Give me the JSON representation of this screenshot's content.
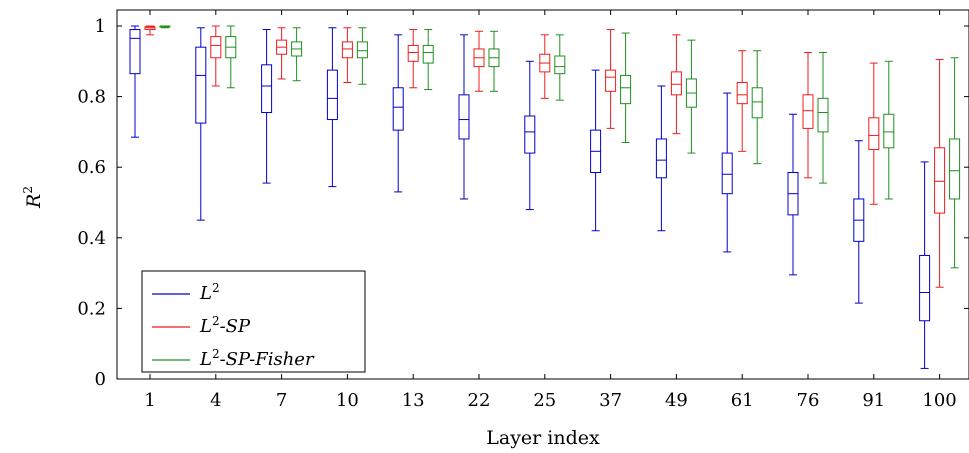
{
  "chart_data": {
    "type": "box",
    "xlabel": "Layer index",
    "ylabel": "R",
    "ylabel_sup": "2",
    "ylim": [
      0,
      1.0
    ],
    "yticks": [
      "0",
      "0.2",
      "0.4",
      "0.6",
      "0.8",
      "1"
    ],
    "categories": [
      "1",
      "4",
      "7",
      "10",
      "13",
      "22",
      "25",
      "37",
      "49",
      "61",
      "76",
      "91",
      "100"
    ],
    "legend_position": "lower-left",
    "series": [
      {
        "name": "L2",
        "legend_base": "L",
        "legend_sup": "2",
        "legend_suffix": "",
        "color": "#0000cc",
        "boxes": [
          {
            "min": 0.685,
            "q1": 0.865,
            "median": 0.965,
            "q3": 0.99,
            "max": 1.0
          },
          {
            "min": 0.45,
            "q1": 0.725,
            "median": 0.86,
            "q3": 0.94,
            "max": 0.995
          },
          {
            "min": 0.555,
            "q1": 0.755,
            "median": 0.83,
            "q3": 0.89,
            "max": 0.99
          },
          {
            "min": 0.545,
            "q1": 0.735,
            "median": 0.795,
            "q3": 0.875,
            "max": 0.995
          },
          {
            "min": 0.53,
            "q1": 0.705,
            "median": 0.77,
            "q3": 0.825,
            "max": 0.975
          },
          {
            "min": 0.51,
            "q1": 0.68,
            "median": 0.735,
            "q3": 0.805,
            "max": 0.975
          },
          {
            "min": 0.48,
            "q1": 0.64,
            "median": 0.7,
            "q3": 0.745,
            "max": 0.9
          },
          {
            "min": 0.42,
            "q1": 0.585,
            "median": 0.645,
            "q3": 0.705,
            "max": 0.875
          },
          {
            "min": 0.42,
            "q1": 0.57,
            "median": 0.62,
            "q3": 0.68,
            "max": 0.83
          },
          {
            "min": 0.36,
            "q1": 0.525,
            "median": 0.58,
            "q3": 0.64,
            "max": 0.81
          },
          {
            "min": 0.295,
            "q1": 0.465,
            "median": 0.525,
            "q3": 0.585,
            "max": 0.75
          },
          {
            "min": 0.215,
            "q1": 0.39,
            "median": 0.45,
            "q3": 0.51,
            "max": 0.675
          },
          {
            "min": 0.03,
            "q1": 0.165,
            "median": 0.245,
            "q3": 0.35,
            "max": 0.615
          }
        ]
      },
      {
        "name": "L2-SP",
        "legend_base": "L",
        "legend_sup": "2",
        "legend_suffix": "-SP",
        "color": "#ee1c1c",
        "boxes": [
          {
            "min": 0.975,
            "q1": 0.99,
            "median": 0.995,
            "q3": 0.998,
            "max": 1.0
          },
          {
            "min": 0.83,
            "q1": 0.91,
            "median": 0.945,
            "q3": 0.97,
            "max": 1.0
          },
          {
            "min": 0.85,
            "q1": 0.92,
            "median": 0.94,
            "q3": 0.96,
            "max": 0.995
          },
          {
            "min": 0.84,
            "q1": 0.91,
            "median": 0.935,
            "q3": 0.955,
            "max": 0.995
          },
          {
            "min": 0.825,
            "q1": 0.9,
            "median": 0.925,
            "q3": 0.945,
            "max": 0.99
          },
          {
            "min": 0.815,
            "q1": 0.885,
            "median": 0.91,
            "q3": 0.935,
            "max": 0.985
          },
          {
            "min": 0.795,
            "q1": 0.87,
            "median": 0.895,
            "q3": 0.92,
            "max": 0.975
          },
          {
            "min": 0.71,
            "q1": 0.815,
            "median": 0.855,
            "q3": 0.875,
            "max": 0.99
          },
          {
            "min": 0.695,
            "q1": 0.805,
            "median": 0.835,
            "q3": 0.87,
            "max": 0.975
          },
          {
            "min": 0.645,
            "q1": 0.78,
            "median": 0.805,
            "q3": 0.84,
            "max": 0.93
          },
          {
            "min": 0.57,
            "q1": 0.71,
            "median": 0.76,
            "q3": 0.805,
            "max": 0.925
          },
          {
            "min": 0.495,
            "q1": 0.65,
            "median": 0.69,
            "q3": 0.74,
            "max": 0.895
          },
          {
            "min": 0.26,
            "q1": 0.47,
            "median": 0.56,
            "q3": 0.655,
            "max": 0.905
          }
        ]
      },
      {
        "name": "L2-SP-Fisher",
        "legend_base": "L",
        "legend_sup": "2",
        "legend_suffix": "-SP-Fisher",
        "color": "#1f8f1f",
        "boxes": [
          {
            "min": 0.995,
            "q1": 0.998,
            "median": 0.999,
            "q3": 1.0,
            "max": 1.0
          },
          {
            "min": 0.825,
            "q1": 0.91,
            "median": 0.94,
            "q3": 0.97,
            "max": 1.0
          },
          {
            "min": 0.845,
            "q1": 0.915,
            "median": 0.935,
            "q3": 0.955,
            "max": 0.995
          },
          {
            "min": 0.835,
            "q1": 0.91,
            "median": 0.93,
            "q3": 0.955,
            "max": 0.995
          },
          {
            "min": 0.82,
            "q1": 0.895,
            "median": 0.925,
            "q3": 0.945,
            "max": 0.99
          },
          {
            "min": 0.815,
            "q1": 0.885,
            "median": 0.91,
            "q3": 0.935,
            "max": 0.985
          },
          {
            "min": 0.79,
            "q1": 0.865,
            "median": 0.885,
            "q3": 0.915,
            "max": 0.975
          },
          {
            "min": 0.67,
            "q1": 0.78,
            "median": 0.825,
            "q3": 0.86,
            "max": 0.98
          },
          {
            "min": 0.64,
            "q1": 0.77,
            "median": 0.81,
            "q3": 0.85,
            "max": 0.96
          },
          {
            "min": 0.61,
            "q1": 0.74,
            "median": 0.785,
            "q3": 0.825,
            "max": 0.93
          },
          {
            "min": 0.555,
            "q1": 0.7,
            "median": 0.755,
            "q3": 0.795,
            "max": 0.925
          },
          {
            "min": 0.51,
            "q1": 0.655,
            "median": 0.7,
            "q3": 0.75,
            "max": 0.9
          },
          {
            "min": 0.315,
            "q1": 0.51,
            "median": 0.59,
            "q3": 0.68,
            "max": 0.91
          }
        ]
      }
    ]
  }
}
